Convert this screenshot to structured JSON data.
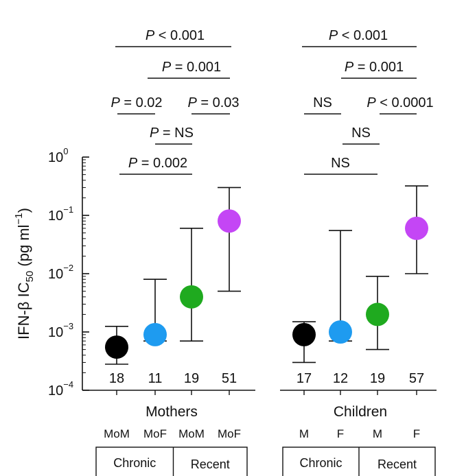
{
  "chart_data": {
    "type": "scatter",
    "yscale": "log",
    "ylabel_parts": [
      "IFN-β IC",
      "50",
      " (pg ml",
      "−1",
      ")"
    ],
    "ylim": [
      0.0001,
      1
    ],
    "yticks": [
      {
        "value": 1,
        "base": "10",
        "exp": "0"
      },
      {
        "value": 0.1,
        "base": "10",
        "exp": "−1"
      },
      {
        "value": 0.01,
        "base": "10",
        "exp": "−2"
      },
      {
        "value": 0.001,
        "base": "10",
        "exp": "−3"
      },
      {
        "value": 0.0001,
        "base": "10",
        "exp": "−4"
      }
    ],
    "groups": [
      {
        "name": "Mothers",
        "subgroups": [
          "Chronic",
          "Recent"
        ]
      },
      {
        "name": "Children",
        "subgroups": [
          "Chronic",
          "Recent"
        ]
      }
    ],
    "points": [
      {
        "group": "Mothers",
        "label": "MoM",
        "status": "Chronic",
        "median": 0.00055,
        "low": 0.00028,
        "high": 0.00125,
        "n": "18",
        "color": "#000000"
      },
      {
        "group": "Mothers",
        "label": "MoF",
        "status": "Chronic",
        "median": 0.0009,
        "low": 0.0007,
        "high": 0.008,
        "n": "11",
        "color": "#1e9bf0"
      },
      {
        "group": "Mothers",
        "label": "MoM",
        "status": "Recent",
        "median": 0.004,
        "low": 0.0007,
        "high": 0.06,
        "n": "19",
        "color": "#1faa1f"
      },
      {
        "group": "Mothers",
        "label": "MoF",
        "status": "Recent",
        "median": 0.08,
        "low": 0.005,
        "high": 0.3,
        "n": "51",
        "color": "#c446f5"
      },
      {
        "group": "Children",
        "label": "M",
        "status": "Chronic",
        "median": 0.0009,
        "low": 0.0003,
        "high": 0.0015,
        "n": "17",
        "color": "#000000"
      },
      {
        "group": "Children",
        "label": "F",
        "status": "Chronic",
        "median": 0.001,
        "low": 0.0007,
        "high": 0.055,
        "n": "12",
        "color": "#1e9bf0"
      },
      {
        "group": "Children",
        "label": "M",
        "status": "Recent",
        "median": 0.002,
        "low": 0.0005,
        "high": 0.009,
        "n": "19",
        "color": "#1faa1f"
      },
      {
        "group": "Children",
        "label": "F",
        "status": "Recent",
        "median": 0.06,
        "low": 0.01,
        "high": 0.32,
        "n": "57",
        "color": "#c446f5"
      }
    ],
    "comparisons": [
      {
        "group": "Mothers",
        "from": 0,
        "to": 3,
        "prefix": "P",
        "text": " < 0.001",
        "underline": "full"
      },
      {
        "group": "Mothers",
        "from": 1,
        "to": 3,
        "prefix": "P",
        "text": " = 0.001",
        "underline": "full"
      },
      {
        "group": "Mothers",
        "from": 0,
        "to": 1,
        "prefix": "P",
        "text": " = 0.02",
        "underline": "full"
      },
      {
        "group": "Mothers",
        "from": 2,
        "to": 3,
        "prefix": "P",
        "text": " = 0.03",
        "underline": "full"
      },
      {
        "group": "Mothers",
        "from": 1,
        "to": 2,
        "prefix": "P",
        "text": " = NS",
        "underline": "full"
      },
      {
        "group": "Mothers",
        "from": 0,
        "to": 2,
        "prefix": "P",
        "text": " = 0.002",
        "underline": "full"
      },
      {
        "group": "Children",
        "from": 0,
        "to": 3,
        "prefix": "P",
        "text": " < 0.001",
        "underline": "full"
      },
      {
        "group": "Children",
        "from": 1,
        "to": 3,
        "prefix": "P",
        "text": " = 0.001",
        "underline": "full"
      },
      {
        "group": "Children",
        "from": 0,
        "to": 1,
        "prefix": "",
        "text": "NS",
        "underline": "full"
      },
      {
        "group": "Children",
        "from": 2,
        "to": 3,
        "prefix": "P",
        "text": " < 0.0001",
        "underline": "full"
      },
      {
        "group": "Children",
        "from": 1,
        "to": 2,
        "prefix": "",
        "text": "NS",
        "underline": "full"
      },
      {
        "group": "Children",
        "from": 0,
        "to": 2,
        "prefix": "",
        "text": "NS",
        "underline": "full"
      }
    ]
  }
}
